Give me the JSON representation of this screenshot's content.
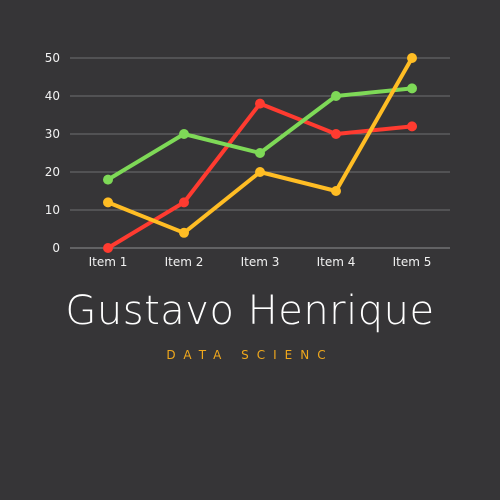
{
  "brand": {
    "name": "Gustavo Henrique",
    "tagline": "DATA SCIENC"
  },
  "colors": {
    "background": "#363537",
    "grid": "#6e6e70",
    "axis": "#8e8e90",
    "tick_text": "#f2f2f2",
    "name_text": "#ffffff",
    "tagline_text": "#f0a81c"
  },
  "chart_data": {
    "type": "line",
    "categories": [
      "Item 1",
      "Item 2",
      "Item 3",
      "Item 4",
      "Item 5"
    ],
    "yticks": [
      0,
      10,
      20,
      30,
      40,
      50
    ],
    "ylim": [
      0,
      50
    ],
    "grid": true,
    "legend": "none",
    "title": "",
    "xlabel": "",
    "ylabel": "",
    "series": [
      {
        "color": "#ff3b30",
        "values": [
          0,
          12,
          38,
          30,
          32
        ]
      },
      {
        "color": "#7ed957",
        "values": [
          18,
          30,
          25,
          40,
          42
        ]
      },
      {
        "color": "#ffbd24",
        "values": [
          12,
          4,
          20,
          15,
          50
        ]
      }
    ]
  }
}
